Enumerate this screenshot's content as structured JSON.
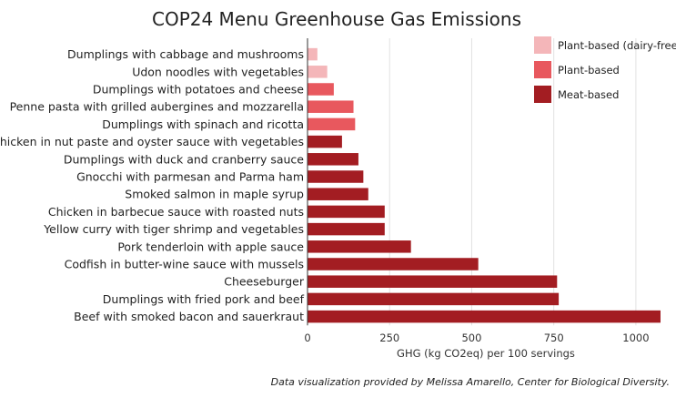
{
  "chart_data": {
    "type": "bar",
    "orientation": "horizontal",
    "title": "COP24 Menu Greenhouse Gas Emissions",
    "xlabel": "GHG (kg CO2eq) per 100 servings",
    "ylabel": "",
    "xlim": [
      0,
      1100
    ],
    "x_ticks": [
      0,
      250,
      500,
      750,
      1000
    ],
    "grid": true,
    "legend_position": "top-right",
    "legend": [
      {
        "name": "Plant-based (dairy-free)",
        "color": "#f4b6b9"
      },
      {
        "name": "Plant-based",
        "color": "#e8585e"
      },
      {
        "name": "Meat-based",
        "color": "#a31d22"
      }
    ],
    "categories": [
      "Dumplings with cabbage and mushrooms",
      "Udon noodles with vegetables",
      "Dumplings with potatoes and cheese",
      "Penne pasta with grilled aubergines and mozzarella",
      "Dumplings with spinach and ricotta",
      "Chicken in nut paste and oyster sauce with vegetables",
      "Dumplings with duck and cranberry sauce",
      "Gnocchi with parmesan and Parma ham",
      "Smoked salmon in maple syrup",
      "Chicken in barbecue sauce with roasted nuts",
      "Yellow curry with tiger shrimp and vegetables",
      "Pork tenderloin with apple sauce",
      "Codfish in butter-wine sauce with mussels",
      "Cheeseburger",
      "Dumplings with fried pork and beef",
      "Beef with smoked bacon and sauerkraut"
    ],
    "values": [
      30,
      60,
      80,
      140,
      145,
      105,
      155,
      170,
      185,
      235,
      235,
      315,
      520,
      760,
      765,
      1075
    ],
    "groups": [
      "Plant-based (dairy-free)",
      "Plant-based (dairy-free)",
      "Plant-based",
      "Plant-based",
      "Plant-based",
      "Meat-based",
      "Meat-based",
      "Meat-based",
      "Meat-based",
      "Meat-based",
      "Meat-based",
      "Meat-based",
      "Meat-based",
      "Meat-based",
      "Meat-based",
      "Meat-based"
    ],
    "credit": "Data visualization provided by Melissa Amarello, Center for Biological Diversity."
  }
}
